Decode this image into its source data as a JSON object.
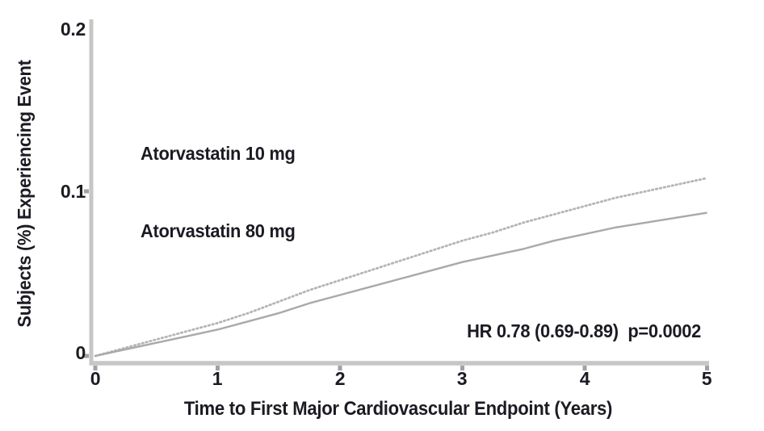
{
  "colors": {
    "text": "#1b1b23",
    "axis": "#c6c6c6",
    "tick": "#a2a2a2",
    "curve_10mg": "#b5b5b5",
    "curve_80mg": "#a9a9a9",
    "background": "#ffffff"
  },
  "chart_data": {
    "type": "line",
    "title": "",
    "xlabel": "Time to First Major Cardiovascular Endpoint (Years)",
    "ylabel": "Subjects (%) Experiencing Event",
    "xlim": [
      0,
      5
    ],
    "ylim": [
      0,
      0.2
    ],
    "grid": false,
    "xticks": [
      0,
      1,
      2,
      3,
      4,
      5
    ],
    "yticks": [
      0,
      0.1,
      0.2
    ],
    "xtick_labels": [
      "0",
      "1",
      "2",
      "3",
      "4",
      "5"
    ],
    "ytick_labels": [
      "0",
      "0.1",
      "0.2"
    ],
    "legend": [
      "Atorvastatin 10 mg",
      "Atorvastatin 80 mg"
    ],
    "legend_position": "upper-left-inside",
    "annotation": "HR 0.78 (0.69-0.89)  p=0.0002",
    "x": [
      0,
      0.25,
      0.5,
      0.75,
      1,
      1.25,
      1.5,
      1.75,
      2,
      2.25,
      2.5,
      2.75,
      3,
      3.25,
      3.5,
      3.75,
      4,
      4.25,
      4.5,
      4.75,
      5
    ],
    "series": [
      {
        "name": "Atorvastatin 10 mg",
        "style": "dotted",
        "color": "#b5b5b5",
        "values": [
          0,
          0.005,
          0.01,
          0.015,
          0.02,
          0.026,
          0.033,
          0.04,
          0.046,
          0.052,
          0.058,
          0.064,
          0.07,
          0.075,
          0.081,
          0.086,
          0.091,
          0.096,
          0.1,
          0.104,
          0.108
        ]
      },
      {
        "name": "Atorvastatin 80 mg",
        "style": "solid",
        "color": "#a9a9a9",
        "values": [
          0,
          0.004,
          0.008,
          0.012,
          0.016,
          0.021,
          0.026,
          0.032,
          0.037,
          0.042,
          0.047,
          0.052,
          0.057,
          0.061,
          0.065,
          0.07,
          0.074,
          0.078,
          0.081,
          0.084,
          0.087
        ]
      }
    ]
  }
}
